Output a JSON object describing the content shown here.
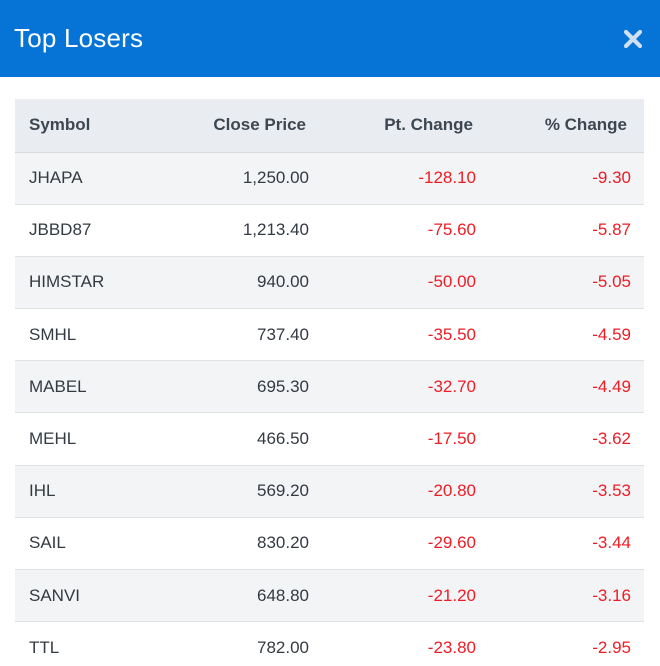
{
  "header": {
    "title": "Top Losers",
    "close_icon": "close-icon"
  },
  "table": {
    "columns": [
      "Symbol",
      "Close Price",
      "Pt. Change",
      "% Change"
    ],
    "rows": [
      {
        "symbol": "JHAPA",
        "close": "1,250.00",
        "pt": "-128.10",
        "pct": "-9.30"
      },
      {
        "symbol": "JBBD87",
        "close": "1,213.40",
        "pt": "-75.60",
        "pct": "-5.87"
      },
      {
        "symbol": "HIMSTAR",
        "close": "940.00",
        "pt": "-50.00",
        "pct": "-5.05"
      },
      {
        "symbol": "SMHL",
        "close": "737.40",
        "pt": "-35.50",
        "pct": "-4.59"
      },
      {
        "symbol": "MABEL",
        "close": "695.30",
        "pt": "-32.70",
        "pct": "-4.49"
      },
      {
        "symbol": "MEHL",
        "close": "466.50",
        "pt": "-17.50",
        "pct": "-3.62"
      },
      {
        "symbol": "IHL",
        "close": "569.20",
        "pt": "-20.80",
        "pct": "-3.53"
      },
      {
        "symbol": "SAIL",
        "close": "830.20",
        "pt": "-29.60",
        "pct": "-3.44"
      },
      {
        "symbol": "SANVI",
        "close": "648.80",
        "pt": "-21.20",
        "pct": "-3.16"
      },
      {
        "symbol": "TTL",
        "close": "782.00",
        "pt": "-23.80",
        "pct": "-2.95"
      }
    ]
  },
  "colors": {
    "header_bg": "#0574d6",
    "negative": "#ee1c25",
    "header_row_bg": "#e9edf1"
  }
}
